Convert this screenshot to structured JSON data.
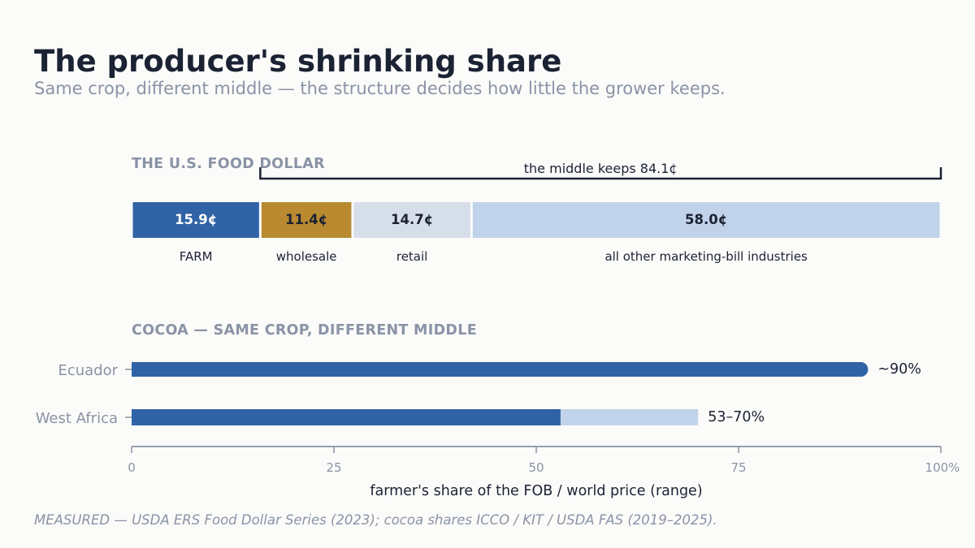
{
  "header": {
    "title": "The producer's shrinking share",
    "subtitle": "Same crop, different middle — the structure decides how little the grower keeps."
  },
  "footer": {
    "source": "MEASURED — USDA ERS Food Dollar Series (2023); cocoa shares ICCO / KIT / USDA FAS (2019–2025)."
  },
  "colors": {
    "farm": "#3063a5",
    "wholesale": "#b98a30",
    "retail": "#d6dee9",
    "other": "#c1d3ea",
    "range": "#c1d3ea",
    "dark_text": "#1b2233",
    "muted": "#8a93a6"
  },
  "chart_data": [
    {
      "type": "bar",
      "orientation": "stacked-horizontal",
      "title": "THE U.S. FOOD DOLLAR",
      "annotation": "the middle keeps 84.1¢",
      "categories": [
        "FARM",
        "wholesale",
        "retail",
        "all other marketing-bill industries"
      ],
      "values": [
        15.9,
        11.4,
        14.7,
        58.0
      ],
      "value_labels": [
        "15.9¢",
        "11.4¢",
        "14.7¢",
        "58.0¢"
      ],
      "total": 100
    },
    {
      "type": "bar",
      "orientation": "horizontal",
      "title": "COCOA — SAME CROP, DIFFERENT MIDDLE",
      "categories": [
        "Ecuador",
        "West Africa"
      ],
      "ranges": [
        [
          91,
          91
        ],
        [
          53,
          70
        ]
      ],
      "value_labels": [
        "~90%",
        "53–70%"
      ],
      "xlabel": "farmer's share of the FOB / world price  (range)",
      "xlim": [
        0,
        100
      ],
      "xticks": [
        0,
        25,
        50,
        75,
        100
      ],
      "xtick_labels": [
        "0",
        "25",
        "50",
        "75",
        "100%"
      ]
    }
  ]
}
